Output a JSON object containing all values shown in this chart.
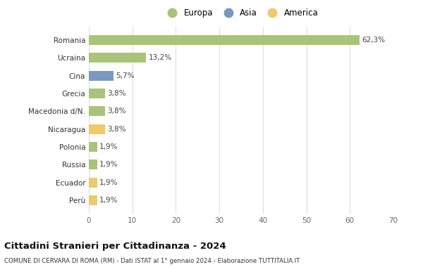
{
  "categories": [
    "Perù",
    "Ecuador",
    "Russia",
    "Polonia",
    "Nicaragua",
    "Macedonia d/N.",
    "Grecia",
    "Cina",
    "Ucraina",
    "Romania"
  ],
  "values": [
    1.9,
    1.9,
    1.9,
    1.9,
    3.8,
    3.8,
    3.8,
    5.7,
    13.2,
    62.3
  ],
  "bar_colors": [
    "#f0c96a",
    "#f0c96a",
    "#a8c47a",
    "#a8c47a",
    "#f0c96a",
    "#a8c47a",
    "#a8c47a",
    "#7a98c0",
    "#a8c47a",
    "#a8c47a"
  ],
  "labels": [
    "1,9%",
    "1,9%",
    "1,9%",
    "1,9%",
    "3,8%",
    "3,8%",
    "3,8%",
    "5,7%",
    "13,2%",
    "62,3%"
  ],
  "legend": [
    {
      "label": "Europa",
      "color": "#a8c47a"
    },
    {
      "label": "Asia",
      "color": "#7a98c0"
    },
    {
      "label": "America",
      "color": "#f0c96a"
    }
  ],
  "xlim": [
    0,
    70
  ],
  "xticks": [
    0,
    10,
    20,
    30,
    40,
    50,
    60,
    70
  ],
  "title": "Cittadini Stranieri per Cittadinanza - 2024",
  "subtitle": "COMUNE DI CERVARA DI ROMA (RM) - Dati ISTAT al 1° gennaio 2024 - Elaborazione TUTTITALIA.IT",
  "bg_color": "#ffffff",
  "grid_color": "#dddddd",
  "bar_height": 0.55
}
